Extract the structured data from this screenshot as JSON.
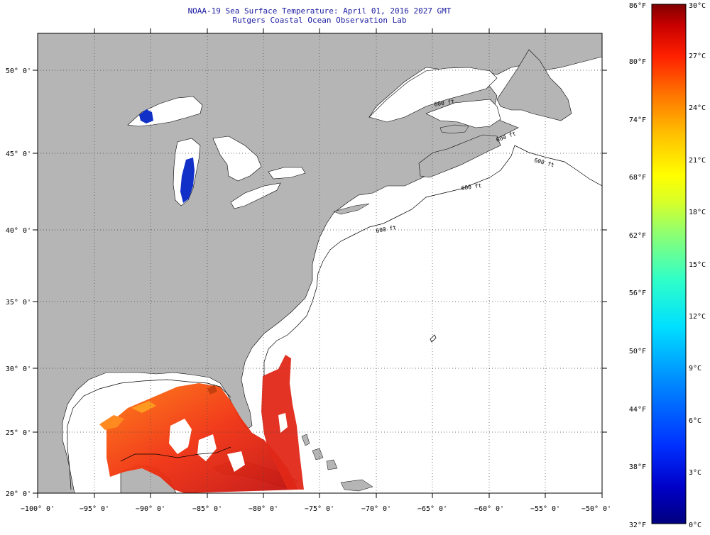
{
  "title": {
    "line1": "NOAA-19 Sea Surface Temperature:  April 01, 2016 2027 GMT",
    "line2": "Rutgers Coastal Ocean Observation Lab"
  },
  "axes": {
    "x_labels": [
      "−100° 0'",
      "−95° 0'",
      "−90° 0'",
      "−85° 0'",
      "−80° 0'",
      "−75° 0'",
      "−70° 0'",
      "−65° 0'",
      "−60° 0'",
      "−55° 0'",
      "−50° 0'"
    ],
    "y_labels": [
      "50° 0'",
      "45° 0'",
      "40° 0'",
      "35° 0'",
      "30° 0'",
      "25° 0'",
      "20° 0'"
    ]
  },
  "colorbar": {
    "fahrenheit_labels": [
      "86°F",
      "80°F",
      "74°F",
      "68°F",
      "62°F",
      "56°F",
      "50°F",
      "44°F",
      "38°F",
      "32°F"
    ],
    "celsius_labels": [
      "30°C",
      "27°C",
      "24°C",
      "21°C",
      "18°C",
      "15°C",
      "12°C",
      "9°C",
      "6°C",
      "3°C",
      "0°C"
    ],
    "colors": [
      "#00007f",
      "#0000c8",
      "#0022ff",
      "#0066ff",
      "#00aaff",
      "#00e5ff",
      "#20ffd8",
      "#60ff98",
      "#a0ff58",
      "#e0ff20",
      "#ffe000",
      "#ffa800",
      "#ff6a00",
      "#ff2800",
      "#d80000",
      "#8a0000"
    ]
  },
  "isobath_labels": [
    "600 ft",
    "600 ft",
    "600 ft",
    "600 ft",
    "600 ft"
  ],
  "colors": {
    "land": "#b5b5b5",
    "ocean": "#ffffff",
    "title": "#1a1aa0",
    "lake_cold": "#1030c8"
  }
}
